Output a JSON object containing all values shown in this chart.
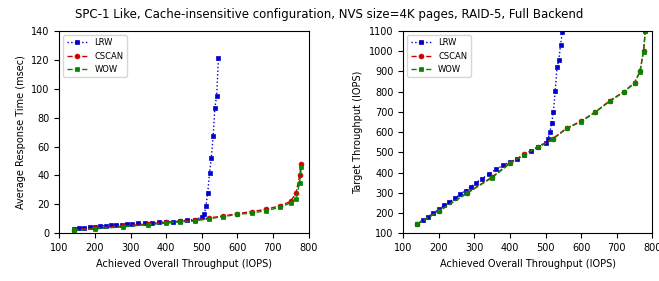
{
  "title": "SPC-1 Like, Cache-insensitive configuration, NVS size=4K pages, RAID-5, Full Backend",
  "title_fontsize": 8.5,
  "left": {
    "xlabel": "Achieved Overall Throughput (IOPS)",
    "ylabel": "Average Response Time (msec)",
    "xlim": [
      100,
      800
    ],
    "ylim": [
      0,
      140
    ],
    "xticks": [
      100,
      200,
      300,
      400,
      500,
      600,
      700,
      800
    ],
    "yticks": [
      0,
      20,
      40,
      60,
      80,
      100,
      120,
      140
    ],
    "LRW_x": [
      140,
      155,
      170,
      185,
      200,
      215,
      230,
      245,
      260,
      275,
      290,
      305,
      320,
      340,
      360,
      380,
      400,
      420,
      440,
      460,
      480,
      500,
      507,
      512,
      517,
      522,
      527,
      532,
      537,
      542,
      547
    ],
    "LRW_y": [
      3.0,
      3.5,
      3.8,
      4.2,
      4.6,
      5.0,
      5.2,
      5.5,
      5.8,
      6.0,
      6.2,
      6.5,
      6.8,
      7.0,
      7.2,
      7.5,
      7.8,
      8.0,
      8.5,
      9.0,
      9.5,
      11.0,
      13.0,
      19.0,
      28.0,
      42.0,
      52.0,
      67.0,
      87.0,
      95.0,
      121.0
    ],
    "CSCAN_x": [
      140,
      200,
      280,
      350,
      400,
      440,
      480,
      520,
      560,
      600,
      640,
      680,
      720,
      750,
      765,
      775,
      780
    ],
    "CSCAN_y": [
      2.5,
      3.5,
      5.0,
      6.5,
      7.5,
      8.2,
      9.0,
      10.5,
      12.0,
      13.5,
      15.0,
      16.5,
      19.0,
      22.0,
      28.0,
      40.0,
      48.0
    ],
    "WOW_x": [
      140,
      200,
      280,
      350,
      400,
      440,
      480,
      520,
      560,
      600,
      640,
      680,
      720,
      750,
      765,
      775,
      780
    ],
    "WOW_y": [
      2.0,
      3.0,
      4.5,
      6.0,
      7.0,
      7.8,
      8.5,
      10.0,
      11.5,
      13.0,
      14.0,
      15.5,
      18.0,
      21.0,
      24.0,
      35.0,
      46.0
    ]
  },
  "right": {
    "xlabel": "Achieved Overall Throughput (IOPS)",
    "ylabel": "Target Throughput (IOPS)",
    "xlim": [
      100,
      800
    ],
    "ylim": [
      100,
      1100
    ],
    "xticks": [
      100,
      200,
      300,
      400,
      500,
      600,
      700,
      800
    ],
    "yticks": [
      100,
      200,
      300,
      400,
      500,
      600,
      700,
      800,
      900,
      1000,
      1100
    ],
    "LRW_x": [
      140,
      155,
      170,
      185,
      200,
      215,
      230,
      245,
      260,
      275,
      290,
      305,
      320,
      340,
      360,
      380,
      400,
      420,
      440,
      460,
      480,
      500,
      507,
      512,
      517,
      522,
      527,
      532,
      537,
      542,
      547
    ],
    "LRW_y": [
      148,
      165,
      182,
      200,
      218,
      238,
      255,
      272,
      292,
      310,
      330,
      350,
      368,
      392,
      415,
      435,
      452,
      468,
      488,
      508,
      528,
      548,
      568,
      600,
      645,
      700,
      805,
      920,
      955,
      1030,
      1095
    ],
    "CSCAN_x": [
      140,
      200,
      280,
      350,
      400,
      440,
      480,
      520,
      560,
      600,
      640,
      680,
      720,
      750,
      765,
      775,
      780
    ],
    "CSCAN_y": [
      148,
      210,
      300,
      378,
      448,
      490,
      528,
      568,
      620,
      655,
      700,
      755,
      800,
      845,
      900,
      1000,
      1100
    ],
    "WOW_x": [
      140,
      200,
      280,
      350,
      400,
      440,
      480,
      520,
      560,
      600,
      640,
      680,
      720,
      750,
      765,
      775,
      780
    ],
    "WOW_y": [
      145,
      208,
      298,
      375,
      445,
      488,
      525,
      565,
      618,
      652,
      698,
      752,
      798,
      842,
      898,
      998,
      1098
    ]
  },
  "lrw_color": "#0000cc",
  "cscan_color": "#cc0000",
  "wow_color": "#008800",
  "marker_size": 3,
  "linewidth": 1.0
}
